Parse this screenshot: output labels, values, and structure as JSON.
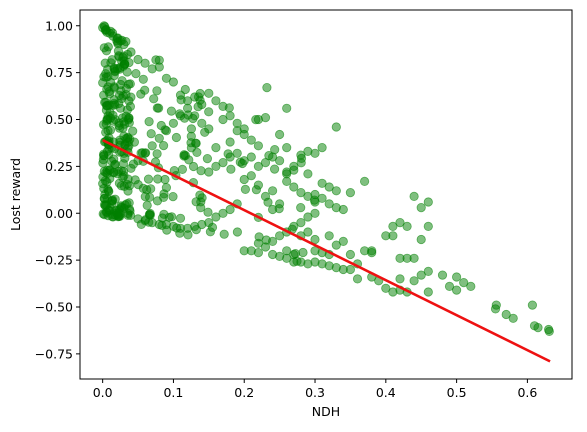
{
  "chart_data": {
    "type": "scatter",
    "title": "",
    "xlabel": "NDH",
    "ylabel": "Lost reward",
    "xlim": [
      -0.032,
      0.663
    ],
    "ylim": [
      -0.884,
      1.084
    ],
    "xticks": [
      0.0,
      0.1,
      0.2,
      0.3,
      0.4,
      0.5,
      0.6
    ],
    "xtick_labels": [
      "0.0",
      "0.1",
      "0.2",
      "0.3",
      "0.4",
      "0.5",
      "0.6"
    ],
    "yticks": [
      -0.75,
      -0.5,
      -0.25,
      0.0,
      0.25,
      0.5,
      0.75,
      1.0
    ],
    "ytick_labels": [
      "−0.75",
      "−0.50",
      "−0.25",
      "0.00",
      "0.25",
      "0.50",
      "0.75",
      "1.00"
    ],
    "grid": false,
    "legend": "none",
    "colors": {
      "points": "#008000",
      "trend": "#ee1111"
    },
    "series": [
      {
        "type": "scatter",
        "point_count": 540,
        "points": [
          [
            0.232,
            0.67
          ],
          [
            0.26,
            0.56
          ],
          [
            0.33,
            0.46
          ],
          [
            0.35,
            0.11
          ],
          [
            0.37,
            0.17
          ],
          [
            0.44,
            0.09
          ],
          [
            0.46,
            0.06
          ],
          [
            0.45,
            0.03
          ],
          [
            0.42,
            -0.05
          ],
          [
            0.41,
            -0.07
          ],
          [
            0.43,
            -0.07
          ],
          [
            0.46,
            -0.07
          ],
          [
            0.4,
            -0.12
          ],
          [
            0.41,
            -0.12
          ],
          [
            0.45,
            -0.14
          ],
          [
            0.38,
            -0.21
          ],
          [
            0.42,
            -0.24
          ],
          [
            0.43,
            -0.24
          ],
          [
            0.44,
            -0.24
          ],
          [
            0.46,
            -0.31
          ],
          [
            0.42,
            -0.35
          ],
          [
            0.45,
            -0.33
          ],
          [
            0.44,
            -0.36
          ],
          [
            0.48,
            -0.33
          ],
          [
            0.5,
            -0.34
          ],
          [
            0.51,
            -0.37
          ],
          [
            0.52,
            -0.39
          ],
          [
            0.49,
            -0.39
          ],
          [
            0.5,
            -0.41
          ],
          [
            0.46,
            -0.42
          ],
          [
            0.556,
            -0.49
          ],
          [
            0.555,
            -0.51
          ],
          [
            0.57,
            -0.54
          ],
          [
            0.58,
            -0.56
          ],
          [
            0.607,
            -0.49
          ],
          [
            0.61,
            -0.6
          ],
          [
            0.615,
            -0.61
          ],
          [
            0.63,
            -0.62
          ],
          [
            0.631,
            -0.63
          ],
          [
            0.4,
            -0.4
          ],
          [
            0.42,
            -0.41
          ],
          [
            0.43,
            -0.42
          ],
          [
            0.41,
            -0.42
          ],
          [
            0.36,
            -0.35
          ],
          [
            0.38,
            -0.34
          ],
          [
            0.39,
            -0.36
          ],
          [
            0.35,
            -0.3
          ],
          [
            0.34,
            -0.3
          ],
          [
            0.32,
            -0.28
          ],
          [
            0.33,
            -0.29
          ],
          [
            0.3,
            -0.26
          ],
          [
            0.31,
            -0.27
          ],
          [
            0.29,
            -0.27
          ],
          [
            0.28,
            -0.26
          ],
          [
            0.27,
            -0.26
          ],
          [
            0.26,
            -0.24
          ],
          [
            0.25,
            -0.23
          ],
          [
            0.24,
            -0.22
          ],
          [
            0.22,
            -0.21
          ],
          [
            0.2,
            -0.2
          ],
          [
            0.3,
            -0.2
          ],
          [
            0.31,
            -0.21
          ],
          [
            0.32,
            -0.22
          ],
          [
            0.33,
            -0.17
          ],
          [
            0.34,
            -0.15
          ],
          [
            0.35,
            -0.22
          ],
          [
            0.36,
            -0.27
          ],
          [
            0.37,
            -0.2
          ],
          [
            0.38,
            -0.2
          ],
          [
            0.32,
            -0.12
          ],
          [
            0.3,
            0.32
          ],
          [
            0.31,
            0.35
          ],
          [
            0.28,
            0.31
          ],
          [
            0.29,
            0.33
          ],
          [
            0.29,
            0.21
          ],
          [
            0.27,
            0.23
          ],
          [
            0.26,
            0.22
          ],
          [
            0.26,
            0.21
          ],
          [
            0.25,
            0.42
          ],
          [
            0.26,
            0.35
          ],
          [
            0.25,
            0.28
          ],
          [
            0.27,
            0.25
          ],
          [
            0.23,
            0.51
          ],
          [
            0.22,
            0.5
          ],
          [
            0.2,
            0.45
          ],
          [
            0.19,
            0.44
          ],
          [
            0.18,
            0.38
          ],
          [
            0.17,
            0.5
          ],
          [
            0.16,
            0.35
          ],
          [
            0.15,
            0.45
          ],
          [
            0.14,
            0.48
          ],
          [
            0.13,
            0.52
          ],
          [
            0.12,
            0.6
          ],
          [
            0.11,
            0.63
          ],
          [
            0.1,
            0.7
          ],
          [
            0.09,
            0.72
          ],
          [
            0.08,
            0.78
          ],
          [
            0.07,
            0.77
          ],
          [
            0.06,
            0.8
          ],
          [
            0.05,
            0.82
          ],
          [
            0.04,
            0.86
          ],
          [
            0.03,
            0.9
          ],
          [
            0.02,
            0.92
          ],
          [
            0.01,
            0.96
          ],
          [
            0.005,
            0.98
          ],
          [
            0.002,
            1.0
          ],
          [
            0.0,
            0.99
          ],
          [
            0.003,
            0.995
          ],
          [
            0.004,
            0.975
          ],
          [
            0.006,
            0.965
          ],
          [
            0.3,
            0.1
          ],
          [
            0.31,
            0.08
          ],
          [
            0.32,
            0.05
          ],
          [
            0.33,
            0.03
          ],
          [
            0.34,
            0.02
          ],
          [
            0.3,
            0.0
          ],
          [
            0.29,
            -0.02
          ],
          [
            0.28,
            -0.05
          ],
          [
            0.27,
            -0.07
          ],
          [
            0.26,
            -0.1
          ],
          [
            0.24,
            0.12
          ],
          [
            0.23,
            0.09
          ],
          [
            0.22,
            0.15
          ],
          [
            0.21,
            0.2
          ],
          [
            0.2,
            0.18
          ],
          [
            0.19,
            0.05
          ],
          [
            0.18,
            0.02
          ],
          [
            0.17,
            0.0
          ],
          [
            0.16,
            -0.02
          ],
          [
            0.15,
            -0.05
          ],
          [
            0.14,
            -0.06
          ],
          [
            0.13,
            -0.07
          ],
          [
            0.12,
            -0.08
          ],
          [
            0.11,
            -0.08
          ],
          [
            0.1,
            -0.07
          ],
          [
            0.09,
            -0.06
          ],
          [
            0.08,
            -0.06
          ],
          [
            0.07,
            -0.05
          ],
          [
            0.06,
            -0.04
          ],
          [
            0.05,
            -0.03
          ],
          [
            0.21,
            -0.2
          ],
          [
            0.22,
            -0.16
          ],
          [
            0.23,
            -0.18
          ],
          [
            0.24,
            -0.15
          ],
          [
            0.25,
            -0.12
          ],
          [
            0.26,
            -0.2
          ],
          [
            0.27,
            -0.22
          ],
          [
            0.28,
            -0.12
          ],
          [
            0.29,
            -0.1
          ],
          [
            0.3,
            -0.14
          ],
          [
            0.24,
            0.3
          ],
          [
            0.23,
            0.27
          ],
          [
            0.22,
            0.25
          ],
          [
            0.21,
            0.3
          ],
          [
            0.2,
            0.28
          ],
          [
            0.19,
            0.32
          ],
          [
            0.18,
            0.3
          ],
          [
            0.17,
            0.27
          ],
          [
            0.16,
            0.25
          ],
          [
            0.15,
            0.22
          ],
          [
            0.31,
            0.16
          ],
          [
            0.32,
            0.14
          ],
          [
            0.33,
            0.12
          ],
          [
            0.3,
            0.06
          ],
          [
            0.29,
            0.09
          ],
          [
            0.28,
            0.11
          ],
          [
            0.27,
            0.14
          ],
          [
            0.26,
            0.17
          ],
          [
            0.25,
            0.05
          ],
          [
            0.24,
            0.02
          ],
          [
            0.17,
            0.57
          ],
          [
            0.18,
            0.52
          ],
          [
            0.19,
            0.48
          ],
          [
            0.2,
            0.42
          ],
          [
            0.21,
            0.39
          ],
          [
            0.22,
            0.36
          ],
          [
            0.16,
            0.6
          ],
          [
            0.15,
            0.64
          ],
          [
            0.14,
            0.58
          ],
          [
            0.13,
            0.62
          ],
          [
            0.12,
            0.56
          ],
          [
            0.11,
            0.52
          ],
          [
            0.1,
            0.48
          ],
          [
            0.09,
            0.44
          ],
          [
            0.08,
            0.4
          ],
          [
            0.07,
            0.36
          ],
          [
            0.06,
            0.32
          ],
          [
            0.05,
            0.28
          ],
          [
            0.04,
            0.24
          ],
          [
            0.03,
            0.2
          ]
        ]
      },
      {
        "type": "line",
        "name": "",
        "x": [
          0.0,
          0.632
        ],
        "y": [
          0.39,
          -0.79
        ]
      }
    ]
  }
}
